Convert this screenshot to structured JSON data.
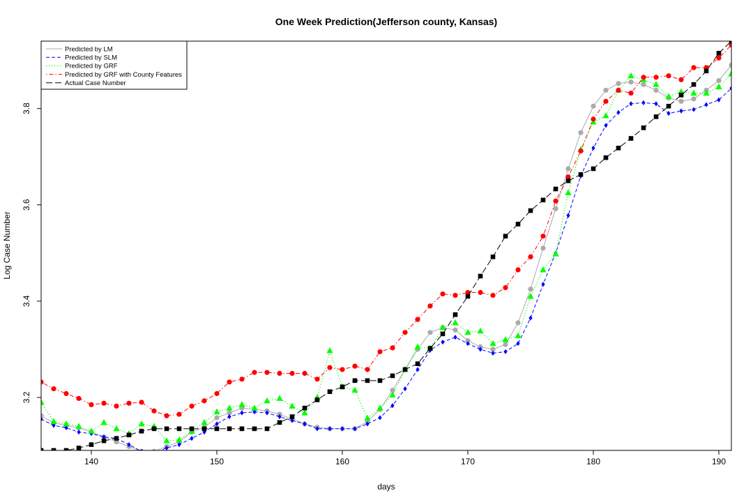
{
  "chart_data": {
    "type": "line",
    "title": "One Week Prediction(Jefferson county, Kansas)",
    "xlabel": "days",
    "ylabel": "Log Case Number",
    "xlim": [
      136,
      191
    ],
    "ylim": [
      3.09,
      3.94
    ],
    "xticks": [
      140,
      150,
      160,
      170,
      180,
      190
    ],
    "yticks": [
      3.2,
      3.4,
      3.6,
      3.8
    ],
    "grid": false,
    "legend_position": "top-left",
    "x": [
      136,
      137,
      138,
      139,
      140,
      141,
      142,
      143,
      144,
      145,
      146,
      147,
      148,
      149,
      150,
      151,
      152,
      153,
      154,
      155,
      156,
      157,
      158,
      159,
      160,
      161,
      162,
      163,
      164,
      165,
      166,
      167,
      168,
      169,
      170,
      171,
      172,
      173,
      174,
      175,
      176,
      177,
      178,
      179,
      180,
      181,
      182,
      183,
      184,
      185,
      186,
      187,
      188,
      189,
      190,
      191
    ],
    "series": [
      {
        "name": "Predicted by LM",
        "color": "#aaaaaa",
        "dash": "solid",
        "marker": "circle",
        "values": [
          3.162,
          3.147,
          3.142,
          3.137,
          3.128,
          3.118,
          3.108,
          3.098,
          3.088,
          3.088,
          3.098,
          3.108,
          3.128,
          3.138,
          3.158,
          3.168,
          3.178,
          3.175,
          3.172,
          3.165,
          3.155,
          3.145,
          3.138,
          3.135,
          3.135,
          3.135,
          3.15,
          3.175,
          3.215,
          3.258,
          3.3,
          3.335,
          3.345,
          3.34,
          3.318,
          3.305,
          3.3,
          3.31,
          3.355,
          3.425,
          3.51,
          3.592,
          3.675,
          3.75,
          3.805,
          3.838,
          3.852,
          3.855,
          3.85,
          3.838,
          3.822,
          3.815,
          3.82,
          3.838,
          3.858,
          3.89
        ]
      },
      {
        "name": "Predicted by SLM",
        "color": "#0000ff",
        "dash": "dashed",
        "marker": "diamond",
        "values": [
          3.155,
          3.142,
          3.137,
          3.128,
          3.125,
          3.118,
          3.115,
          3.102,
          3.088,
          3.085,
          3.095,
          3.102,
          3.115,
          3.128,
          3.145,
          3.16,
          3.168,
          3.17,
          3.168,
          3.16,
          3.152,
          3.145,
          3.135,
          3.135,
          3.135,
          3.135,
          3.145,
          3.158,
          3.183,
          3.218,
          3.258,
          3.298,
          3.315,
          3.325,
          3.312,
          3.3,
          3.292,
          3.295,
          3.312,
          3.365,
          3.435,
          3.5,
          3.578,
          3.66,
          3.718,
          3.765,
          3.792,
          3.81,
          3.812,
          3.81,
          3.79,
          3.795,
          3.798,
          3.808,
          3.818,
          3.842
        ]
      },
      {
        "name": "Predicted by GRF",
        "color": "#00ff00",
        "dash": "dotted",
        "marker": "triangle",
        "values": [
          3.19,
          3.15,
          3.145,
          3.14,
          3.13,
          3.148,
          3.135,
          3.125,
          3.145,
          3.14,
          3.11,
          3.112,
          3.13,
          3.148,
          3.17,
          3.178,
          3.185,
          3.178,
          3.193,
          3.198,
          3.182,
          3.168,
          3.2,
          3.297,
          3.222,
          3.215,
          3.157,
          3.178,
          3.205,
          3.258,
          3.305,
          3.302,
          3.345,
          3.355,
          3.335,
          3.338,
          3.312,
          3.32,
          3.328,
          3.41,
          3.465,
          3.498,
          3.625,
          3.715,
          3.772,
          3.785,
          3.838,
          3.868,
          3.86,
          3.85,
          3.825,
          3.835,
          3.832,
          3.832,
          3.845,
          3.872
        ]
      },
      {
        "name": "Predicted by GRF with County Features",
        "color": "#ff0000",
        "dash": "dotdash",
        "marker": "circle",
        "values": [
          3.232,
          3.218,
          3.208,
          3.198,
          3.185,
          3.188,
          3.182,
          3.188,
          3.19,
          3.172,
          3.162,
          3.165,
          3.182,
          3.193,
          3.208,
          3.232,
          3.238,
          3.252,
          3.252,
          3.25,
          3.25,
          3.25,
          3.238,
          3.262,
          3.258,
          3.265,
          3.258,
          3.295,
          3.303,
          3.335,
          3.362,
          3.39,
          3.415,
          3.412,
          3.418,
          3.418,
          3.412,
          3.428,
          3.465,
          3.492,
          3.535,
          3.608,
          3.658,
          3.712,
          3.778,
          3.815,
          3.838,
          3.832,
          3.865,
          3.865,
          3.868,
          3.86,
          3.885,
          3.885,
          3.905,
          3.932
        ]
      },
      {
        "name": "Actual Case Number",
        "color": "#000000",
        "dash": "longdash",
        "marker": "square",
        "values": [
          3.09,
          3.09,
          3.09,
          3.095,
          3.102,
          3.11,
          3.115,
          3.122,
          3.13,
          3.135,
          3.135,
          3.135,
          3.135,
          3.135,
          3.135,
          3.135,
          3.135,
          3.135,
          3.135,
          3.148,
          3.16,
          3.178,
          3.195,
          3.212,
          3.222,
          3.235,
          3.235,
          3.235,
          3.245,
          3.258,
          3.27,
          3.302,
          3.332,
          3.372,
          3.41,
          3.452,
          3.492,
          3.535,
          3.56,
          3.588,
          3.61,
          3.633,
          3.65,
          3.663,
          3.675,
          3.698,
          3.718,
          3.738,
          3.76,
          3.783,
          3.805,
          3.828,
          3.85,
          3.878,
          3.915,
          3.94
        ]
      }
    ]
  }
}
